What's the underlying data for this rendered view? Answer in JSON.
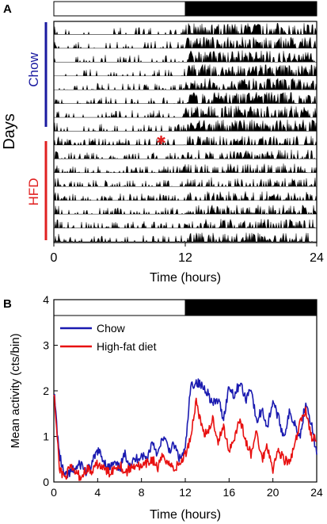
{
  "panel_a": {
    "letter": "A",
    "chart_data": {
      "type": "actogram",
      "ylabel": "Days",
      "xlabel": "Time (hours)",
      "xlim": [
        0,
        24
      ],
      "xticks": [
        "0",
        "12",
        "24"
      ],
      "light_phase_hours": [
        0,
        12
      ],
      "dark_phase_hours": [
        12,
        24
      ],
      "groups": [
        {
          "name": "Chow",
          "days": 8,
          "color": "#1a1aa0"
        },
        {
          "name": "HFD",
          "days": 8,
          "color": "#e02020"
        }
      ],
      "diet_switch_marker": {
        "symbol": "✱",
        "day": 9,
        "hour": 9.8,
        "color": "#e02020"
      }
    }
  },
  "panel_b": {
    "letter": "B",
    "chart_data": {
      "type": "line",
      "xlabel": "Time (hours)",
      "ylabel": "Mean activity (cts/bin)",
      "xlim": [
        0,
        24
      ],
      "ylim": [
        0,
        4
      ],
      "xticks": [
        "0",
        "4",
        "8",
        "12",
        "16",
        "20",
        "24"
      ],
      "yticks": [
        "0",
        "1",
        "2",
        "3",
        "4"
      ],
      "light_phase_hours": [
        0,
        12
      ],
      "dark_phase_hours": [
        12,
        24
      ],
      "legend_position": "top-left",
      "x": [
        0,
        0.5,
        1,
        1.5,
        2,
        2.5,
        3,
        3.5,
        4,
        4.5,
        5,
        5.5,
        6,
        6.5,
        7,
        7.5,
        8,
        8.5,
        9,
        9.5,
        10,
        10.5,
        11,
        11.5,
        12,
        12.5,
        13,
        13.5,
        14,
        14.5,
        15,
        15.5,
        16,
        16.5,
        17,
        17.5,
        18,
        18.5,
        19,
        19.5,
        20,
        20.5,
        21,
        21.5,
        22,
        22.5,
        23,
        23.5,
        24
      ],
      "series": [
        {
          "name": "Chow",
          "color": "#1a1ab0",
          "values": [
            2.0,
            0.6,
            0.1,
            0.2,
            0.3,
            0.4,
            0.2,
            0.4,
            0.7,
            0.5,
            0.3,
            0.4,
            0.3,
            0.6,
            0.4,
            0.5,
            0.6,
            0.5,
            0.9,
            0.6,
            1.0,
            0.7,
            0.8,
            0.5,
            0.7,
            2.1,
            2.2,
            2.1,
            2.0,
            1.7,
            1.8,
            1.4,
            2.1,
            1.9,
            2.2,
            1.8,
            2.1,
            1.3,
            1.6,
            1.2,
            1.8,
            1.4,
            1.0,
            1.5,
            1.3,
            1.0,
            1.8,
            1.3,
            0.6
          ]
        },
        {
          "name": "High-fat diet",
          "color": "#e81010",
          "values": [
            2.0,
            0.3,
            0.1,
            0.3,
            0.2,
            0.1,
            0.3,
            0.2,
            0.4,
            0.3,
            0.2,
            0.3,
            0.4,
            0.2,
            0.3,
            0.4,
            0.3,
            0.4,
            0.5,
            0.3,
            0.6,
            0.4,
            0.3,
            0.4,
            0.6,
            1.0,
            1.8,
            1.2,
            1.0,
            1.4,
            0.9,
            1.2,
            0.7,
            1.0,
            1.4,
            0.9,
            0.6,
            1.1,
            0.5,
            0.8,
            0.3,
            0.7,
            0.5,
            0.4,
            0.8,
            1.3,
            1.6,
            1.0,
            0.9
          ]
        }
      ]
    }
  }
}
